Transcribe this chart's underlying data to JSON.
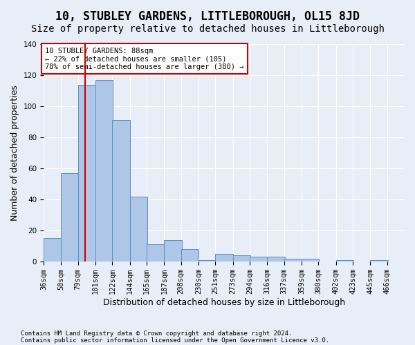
{
  "title": "10, STUBLEY GARDENS, LITTLEBOROUGH, OL15 8JD",
  "subtitle": "Size of property relative to detached houses in Littleborough",
  "xlabel": "Distribution of detached houses by size in Littleborough",
  "ylabel": "Number of detached properties",
  "footnote1": "Contains HM Land Registry data © Crown copyright and database right 2024.",
  "footnote2": "Contains public sector information licensed under the Open Government Licence v3.0.",
  "tick_labels": [
    "36sqm",
    "58sqm",
    "79sqm",
    "101sqm",
    "122sqm",
    "144sqm",
    "165sqm",
    "187sqm",
    "208sqm",
    "230sqm",
    "251sqm",
    "273sqm",
    "294sqm",
    "316sqm",
    "337sqm",
    "359sqm",
    "380sqm",
    "402sqm",
    "423sqm",
    "445sqm",
    "466sqm"
  ],
  "bin_edges": [
    36,
    58,
    79,
    101,
    122,
    144,
    165,
    187,
    208,
    230,
    251,
    273,
    294,
    316,
    337,
    359,
    380,
    402,
    423,
    445,
    466
  ],
  "counts": [
    15,
    57,
    114,
    117,
    91,
    42,
    11,
    14,
    8,
    1,
    5,
    4,
    3,
    3,
    2,
    2,
    0,
    1,
    0,
    1
  ],
  "bar_color": "#aec6e8",
  "bar_edge_color": "#5a8fc0",
  "red_line_x": 88,
  "red_line_label": "10 STUBLEY GARDENS: 88sqm",
  "annotation_line2": "← 22% of detached houses are smaller (105)",
  "annotation_line3": "78% of semi-detached houses are larger (380) →",
  "annotation_box_color": "#ffffff",
  "annotation_border_color": "#cc0000",
  "ylim": [
    0,
    140
  ],
  "yticks": [
    0,
    20,
    40,
    60,
    80,
    100,
    120,
    140
  ],
  "bg_color": "#e8eef7",
  "plot_bg_color": "#e8eef7",
  "grid_color": "#ffffff",
  "title_fontsize": 12,
  "subtitle_fontsize": 10,
  "axis_label_fontsize": 9,
  "tick_fontsize": 7.5
}
